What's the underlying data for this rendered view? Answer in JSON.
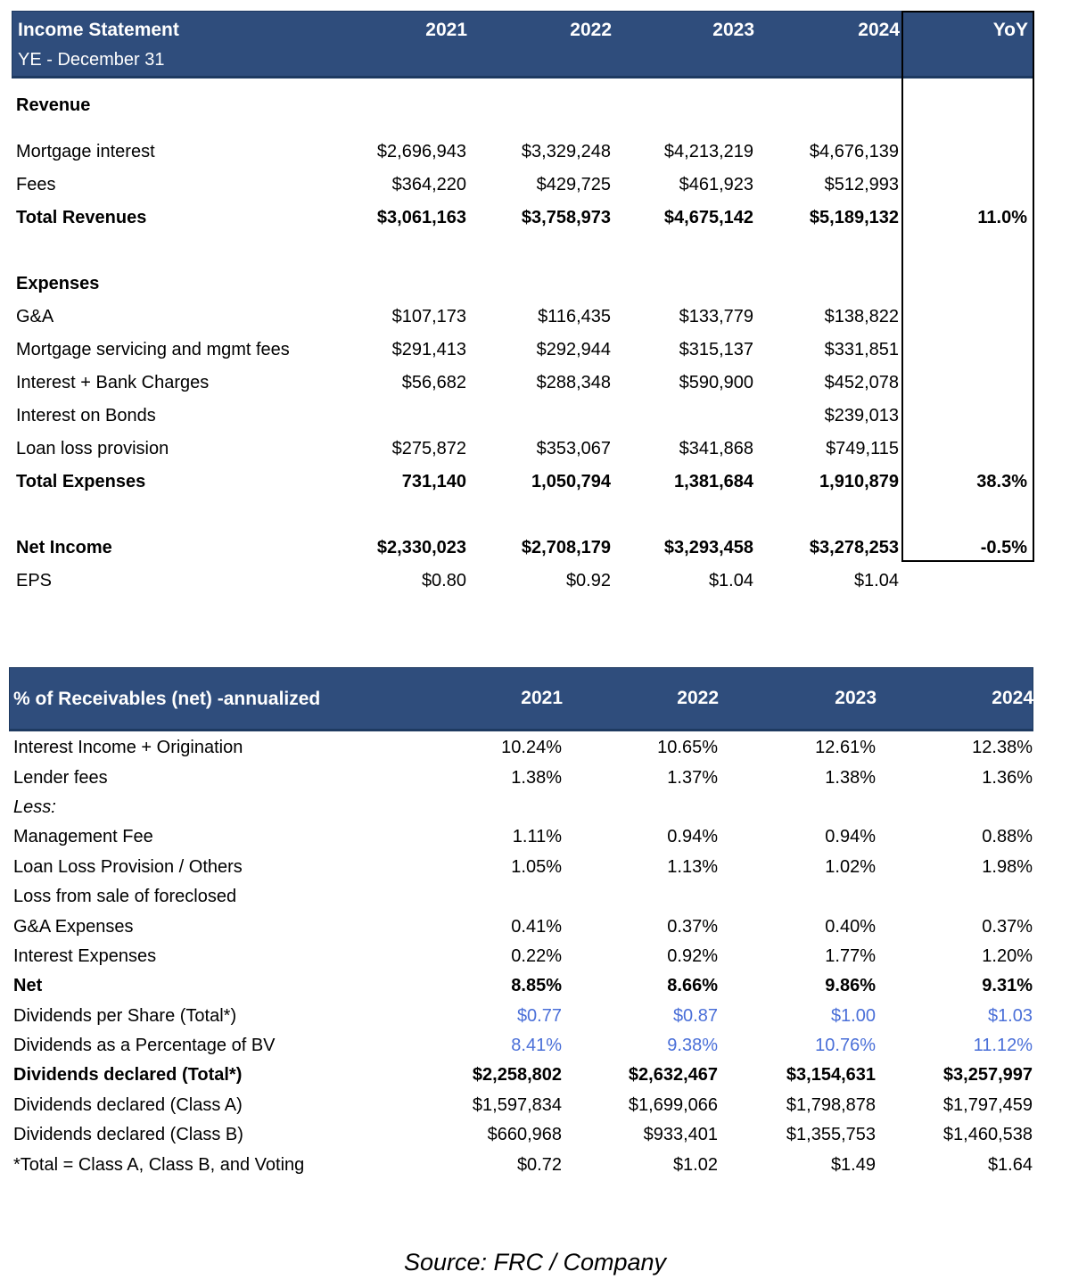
{
  "page": {
    "source_note": "Source: FRC / Company"
  },
  "colors": {
    "header_bg": "#2f4d7c",
    "header_border": "#1e3a61",
    "accent_blue": "#4a6fd8",
    "box_border": "#000000"
  },
  "income_statement": {
    "title": "Income Statement",
    "subtitle": "YE - December 31",
    "columns": [
      "2021",
      "2022",
      "2023",
      "2024",
      "YoY"
    ],
    "rows": [
      {
        "label": "Revenue",
        "style": "section gap-after",
        "values": [
          "",
          "",
          "",
          ""
        ],
        "yoy": ""
      },
      {
        "label": "Mortgage interest",
        "values": [
          "$2,696,943",
          "$3,329,248",
          "$4,213,219",
          "$4,676,139"
        ],
        "yoy": ""
      },
      {
        "label": "Fees",
        "values": [
          "$364,220",
          "$429,725",
          "$461,923",
          "$512,993"
        ],
        "yoy": ""
      },
      {
        "label": "Total Revenues",
        "style": "bold",
        "values": [
          "$3,061,163",
          "$3,758,973",
          "$4,675,142",
          "$5,189,132"
        ],
        "yoy": "11.0%"
      },
      {
        "style": "spacer"
      },
      {
        "label": "Expenses",
        "style": "section",
        "values": [
          "",
          "",
          "",
          ""
        ],
        "yoy": ""
      },
      {
        "label": "G&A",
        "values": [
          "$107,173",
          "$116,435",
          "$133,779",
          "$138,822"
        ],
        "yoy": ""
      },
      {
        "label": "Mortgage servicing and mgmt fees",
        "values": [
          "$291,413",
          "$292,944",
          "$315,137",
          "$331,851"
        ],
        "yoy": ""
      },
      {
        "label": "Interest + Bank Charges",
        "values": [
          "$56,682",
          "$288,348",
          "$590,900",
          "$452,078"
        ],
        "yoy": ""
      },
      {
        "label": "Interest on Bonds",
        "values": [
          "",
          "",
          "",
          "$239,013"
        ],
        "yoy": ""
      },
      {
        "label": "Loan loss provision",
        "values": [
          "$275,872",
          "$353,067",
          "$341,868",
          "$749,115"
        ],
        "yoy": ""
      },
      {
        "label": "Total Expenses",
        "style": "bold",
        "values": [
          "731,140",
          "1,050,794",
          "1,381,684",
          "1,910,879"
        ],
        "yoy": "38.3%"
      },
      {
        "style": "spacer"
      },
      {
        "label": "Net Income",
        "style": "bold",
        "values": [
          "$2,330,023",
          "$2,708,179",
          "$3,293,458",
          "$3,278,253"
        ],
        "yoy": "-0.5%"
      },
      {
        "label": "EPS",
        "values": [
          "$0.80",
          "$0.92",
          "$1.04",
          "$1.04"
        ],
        "yoy": ""
      }
    ]
  },
  "receivables": {
    "title": "% of Receivables (net) -annualized",
    "columns": [
      "2021",
      "2022",
      "2023",
      "2024"
    ],
    "rows": [
      {
        "label": "Interest Income + Origination",
        "values": [
          "10.24%",
          "10.65%",
          "12.61%",
          "12.38%"
        ]
      },
      {
        "label": "Lender fees",
        "values": [
          "1.38%",
          "1.37%",
          "1.38%",
          "1.36%"
        ]
      },
      {
        "label": "Less:",
        "style": "italic",
        "values": [
          "",
          "",
          "",
          ""
        ]
      },
      {
        "label": "Management Fee",
        "values": [
          "1.11%",
          "0.94%",
          "0.94%",
          "0.88%"
        ]
      },
      {
        "label": "Loan Loss Provision / Others",
        "values": [
          "1.05%",
          "1.13%",
          "1.02%",
          "1.98%"
        ]
      },
      {
        "label": "Loss from sale of foreclosed",
        "values": [
          "",
          "",
          "",
          ""
        ]
      },
      {
        "label": "G&A Expenses",
        "values": [
          "0.41%",
          "0.37%",
          "0.40%",
          "0.37%"
        ]
      },
      {
        "label": "Interest Expenses",
        "values": [
          "0.22%",
          "0.92%",
          "1.77%",
          "1.20%"
        ]
      },
      {
        "label": "Net",
        "style": "bold",
        "values": [
          "8.85%",
          "8.66%",
          "9.86%",
          "9.31%"
        ]
      },
      {
        "label": "Dividends per Share (Total*)",
        "style": "blue-values",
        "values": [
          "$0.77",
          "$0.87",
          "$1.00",
          "$1.03"
        ]
      },
      {
        "label": "Dividends as a Percentage of BV",
        "style": "blue-values",
        "values": [
          "8.41%",
          "9.38%",
          "10.76%",
          "11.12%"
        ]
      },
      {
        "label": "Dividends declared (Total*)",
        "style": "bold",
        "values": [
          "$2,258,802",
          "$2,632,467",
          "$3,154,631",
          "$3,257,997"
        ]
      },
      {
        "label": "Dividends declared (Class A)",
        "values": [
          "$1,597,834",
          "$1,699,066",
          "$1,798,878",
          "$1,797,459"
        ]
      },
      {
        "label": "Dividends declared (Class B)",
        "values": [
          "$660,968",
          "$933,401",
          "$1,355,753",
          "$1,460,538"
        ]
      },
      {
        "label": "*Total = Class A, Class B, and Voting",
        "values": [
          "$0.72",
          "$1.02",
          "$1.49",
          "$1.64"
        ]
      }
    ]
  }
}
